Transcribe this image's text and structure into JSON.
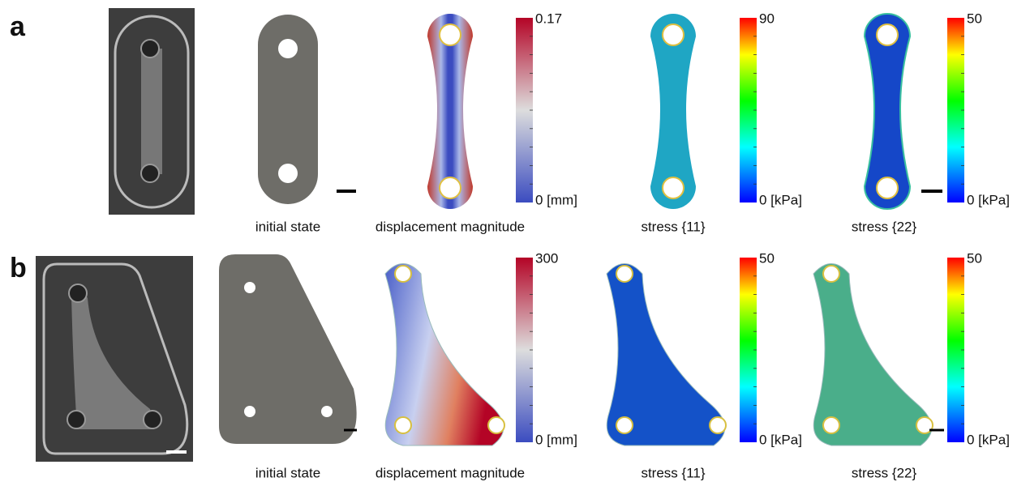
{
  "panels": [
    {
      "label": "a",
      "captions": [
        "initial state",
        "displacement magnitude",
        "stress {11}",
        "stress {22}"
      ],
      "colorbars": [
        {
          "max": "0.17",
          "min": "0 [mm]"
        },
        {
          "max": "90",
          "min": "0 [kPa]"
        },
        {
          "max": "50",
          "min": "0 [kPa]"
        }
      ]
    },
    {
      "label": "b",
      "captions": [
        "initial state",
        "displacement magnitude",
        "stress {11}",
        "stress {22}"
      ],
      "colorbars": [
        {
          "max": "300",
          "min": "0 [mm]"
        },
        {
          "max": "50",
          "min": "0 [kPa]"
        },
        {
          "max": "50",
          "min": "0 [kPa]"
        }
      ]
    }
  ]
}
